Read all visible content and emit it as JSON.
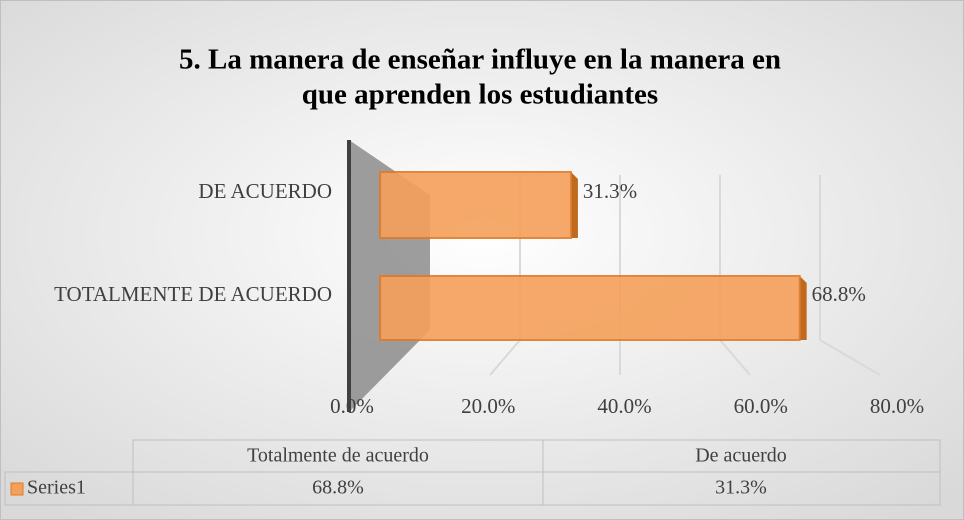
{
  "chart_data": {
    "type": "bar",
    "orientation": "horizontal",
    "title": "5. La manera de enseñar influye en la manera en que aprenden los estudiantes",
    "categories": [
      "DE ACUERDO",
      "TOTALMENTE DE ACUERDO"
    ],
    "series": [
      {
        "name": "Series1",
        "color": "#f5a05a",
        "values": [
          31.3,
          68.8
        ],
        "value_labels": [
          "31.3%",
          "68.8%"
        ]
      }
    ],
    "xlim": [
      0,
      80
    ],
    "xticks": [
      {
        "value": 0,
        "label": "0.0%"
      },
      {
        "value": 20,
        "label": "20.0%"
      },
      {
        "value": 40,
        "label": "40.0%"
      },
      {
        "value": 60,
        "label": "60.0%"
      },
      {
        "value": 80,
        "label": "80.0%"
      }
    ],
    "grid": true,
    "data_table": {
      "columns": [
        "Totalmente de acuerdo",
        "De acuerdo"
      ]
    }
  }
}
